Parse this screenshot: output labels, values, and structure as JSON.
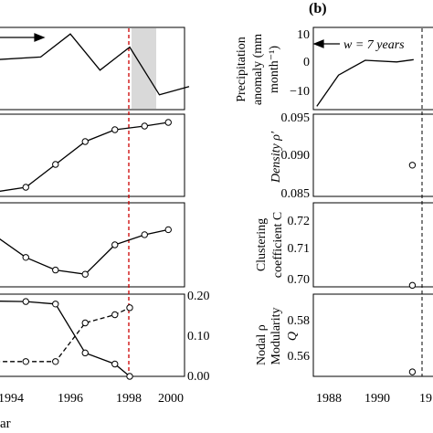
{
  "colors": {
    "line": "#000000",
    "event_line": "#cc0000",
    "event_line_b": "#000000",
    "shade": "#d9d9d9",
    "axis": "#000000"
  },
  "left": {
    "x_ticks": [
      "1994",
      "1996",
      "1998",
      "2000"
    ],
    "x_label_fragment": "ar",
    "nodal_label": "Nodal ρ",
    "right_ticks": [
      "0.20",
      "0.10",
      "0.00"
    ]
  },
  "right": {
    "panel_label": "(b)",
    "x_ticks": [
      "1988",
      "1990",
      "19"
    ],
    "window_label": "w = 7 years",
    "ylabels": [
      [
        "Precipitation",
        "anomaly (mm",
        "month⁻¹)"
      ],
      [
        "Density ρ′"
      ],
      [
        "Clustering",
        "coefficient C"
      ],
      [
        "Modularity",
        "Q"
      ]
    ],
    "yticks": [
      [
        "10",
        "0",
        "−10"
      ],
      [
        "0.095",
        "0.090",
        "0.085"
      ],
      [
        "0.72",
        "0.71",
        "0.70"
      ],
      [
        "0.58",
        "0.56"
      ]
    ]
  },
  "chart_data": [
    {
      "type": "line",
      "panel": "a-1",
      "x": [
        1992.5,
        1993.5,
        1995,
        1996,
        1997,
        1998,
        1999,
        2000
      ],
      "values": [
        4,
        3.2,
        4,
        11,
        0,
        7,
        -7.5,
        -5
      ],
      "ylim": [
        -12,
        13
      ],
      "xlim": [
        1992.5,
        2000
      ],
      "shaded_interval": [
        1998.3,
        1999.3
      ],
      "window_arrow": true
    },
    {
      "type": "line",
      "panel": "a-2",
      "x": [
        1993.5,
        1994.5,
        1995.5,
        1996.5,
        1997.5,
        1998.5,
        1999.3
      ],
      "values": [
        0,
        0.05,
        0.3,
        0.55,
        0.68,
        0.72,
        0.76
      ],
      "ylim": [
        -0.05,
        0.85
      ],
      "markers": "circle"
    },
    {
      "type": "line",
      "panel": "a-3",
      "x": [
        1993.5,
        1994.5,
        1995.5,
        1996.5,
        1997.5,
        1998.5,
        1999.3
      ],
      "values": [
        0.6,
        0.35,
        0.2,
        0.15,
        0.5,
        0.62,
        0.68
      ],
      "ylim": [
        0,
        1
      ],
      "markers": "circle"
    },
    {
      "type": "line",
      "panel": "a-4",
      "xlim": [
        1992.5,
        2000
      ],
      "y_right_ticks": [
        0.0,
        0.1,
        0.2
      ],
      "series": [
        {
          "style": "solid",
          "x": [
            1992.5,
            1993.5,
            1994.5,
            1995.5,
            1996.5,
            1997.5,
            1998
          ],
          "values": [
            0.186,
            0.183,
            0.182,
            0.176,
            0.057,
            0.03,
            0.0
          ]
        },
        {
          "style": "dashed",
          "x": [
            1992.5,
            1993.5,
            1994.5,
            1995.5,
            1996.5,
            1997.5,
            1998
          ],
          "values": [
            0.03,
            0.036,
            0.036,
            0.036,
            0.13,
            0.15,
            0.167
          ]
        }
      ],
      "ylim": [
        0,
        0.2
      ],
      "markers": "circle"
    },
    {
      "type": "line",
      "panel": "b-1",
      "x": [
        1987.5,
        1988.4,
        1989.5,
        1990.8,
        1991.5
      ],
      "values": [
        -12,
        -2.5,
        2,
        1.5,
        2.2
      ],
      "ylim": [
        -13,
        12
      ],
      "xlim": [
        1987.5,
        1991.5
      ],
      "window_arrow": true
    },
    {
      "type": "scatter",
      "panel": "b-2",
      "x": [
        1991.45
      ],
      "values": [
        0.0888
      ],
      "ylim": [
        0.085,
        0.095
      ]
    },
    {
      "type": "scatter",
      "panel": "b-3",
      "x": [
        1991.45
      ],
      "values": [
        0.6975
      ],
      "ylim": [
        0.697,
        0.725
      ]
    },
    {
      "type": "scatter",
      "panel": "b-4",
      "x": [
        1991.45
      ],
      "values": [
        0.555
      ],
      "ylim": [
        0.553,
        0.59
      ]
    }
  ]
}
